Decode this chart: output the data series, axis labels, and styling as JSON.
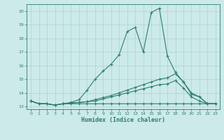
{
  "xlabel": "Humidex (Indice chaleur)",
  "bg_color": "#cceae8",
  "grid_color": "#aad4d0",
  "line_color": "#2d7d72",
  "xlim": [
    -0.5,
    23.5
  ],
  "ylim": [
    12.8,
    20.5
  ],
  "yticks": [
    13,
    14,
    15,
    16,
    17,
    18,
    19,
    20
  ],
  "xticks": [
    0,
    1,
    2,
    3,
    4,
    5,
    6,
    7,
    8,
    9,
    10,
    11,
    12,
    13,
    14,
    15,
    16,
    17,
    18,
    19,
    20,
    21,
    22,
    23
  ],
  "series": [
    {
      "x": [
        0,
        1,
        2,
        3,
        4,
        5,
        6,
        7,
        8,
        9,
        10,
        11,
        12,
        13,
        14,
        15,
        16,
        17,
        18,
        19,
        20,
        21,
        22,
        23
      ],
      "y": [
        13.4,
        13.2,
        13.2,
        13.1,
        13.2,
        13.3,
        13.5,
        14.2,
        15.0,
        15.6,
        16.1,
        16.8,
        18.5,
        18.8,
        17.0,
        19.9,
        20.2,
        16.7,
        15.5,
        14.8,
        13.9,
        13.7,
        13.2,
        13.2
      ]
    },
    {
      "x": [
        0,
        1,
        2,
        3,
        4,
        5,
        6,
        7,
        8,
        9,
        10,
        11,
        12,
        13,
        14,
        15,
        16,
        17,
        18,
        19,
        20,
        21,
        22,
        23
      ],
      "y": [
        13.4,
        13.2,
        13.2,
        13.1,
        13.2,
        13.25,
        13.3,
        13.35,
        13.5,
        13.65,
        13.8,
        14.0,
        14.2,
        14.4,
        14.6,
        14.8,
        15.0,
        15.1,
        15.4,
        14.8,
        14.0,
        13.7,
        13.2,
        13.2
      ]
    },
    {
      "x": [
        0,
        1,
        2,
        3,
        4,
        5,
        6,
        7,
        8,
        9,
        10,
        11,
        12,
        13,
        14,
        15,
        16,
        17,
        18,
        19,
        20,
        21,
        22,
        23
      ],
      "y": [
        13.4,
        13.2,
        13.2,
        13.1,
        13.2,
        13.25,
        13.3,
        13.35,
        13.4,
        13.55,
        13.7,
        13.85,
        14.0,
        14.15,
        14.3,
        14.45,
        14.6,
        14.65,
        14.9,
        14.35,
        13.7,
        13.4,
        13.2,
        13.2
      ]
    },
    {
      "x": [
        0,
        1,
        2,
        3,
        4,
        5,
        6,
        7,
        8,
        9,
        10,
        11,
        12,
        13,
        14,
        15,
        16,
        17,
        18,
        19,
        20,
        21,
        22,
        23
      ],
      "y": [
        13.4,
        13.2,
        13.2,
        13.1,
        13.2,
        13.2,
        13.2,
        13.2,
        13.2,
        13.2,
        13.2,
        13.2,
        13.2,
        13.2,
        13.2,
        13.2,
        13.2,
        13.2,
        13.2,
        13.2,
        13.2,
        13.2,
        13.2,
        13.2
      ]
    }
  ]
}
